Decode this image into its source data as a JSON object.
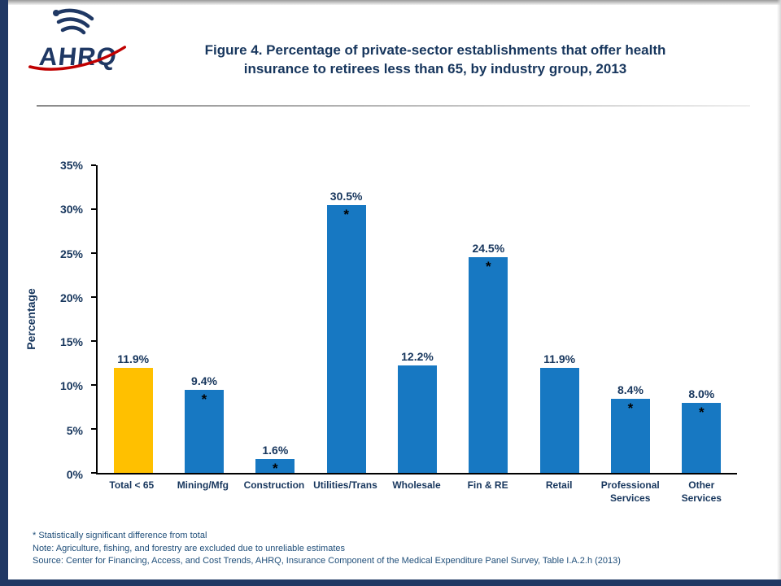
{
  "header": {
    "brand": "AHRQ",
    "title_line1": "Figure 4. Percentage of private-sector establishments  that offer health",
    "title_line2": "insurance to retirees less than 65, by industry group, 2013"
  },
  "chart_data": {
    "type": "bar",
    "title": "Figure 4. Percentage of private-sector establishments that offer health insurance to retirees less than 65, by industry group, 2013",
    "xlabel": "",
    "ylabel": "Percentage",
    "ylim": [
      0,
      35
    ],
    "ytick_step": 5,
    "ytick_suffix": "%",
    "grid": false,
    "legend_position": "none",
    "categories": [
      "Total < 65",
      "Mining/Mfg",
      "Construction",
      "Utilities/Trans",
      "Wholesale",
      "Fin & RE",
      "Retail",
      "Professional Services",
      "Other Services"
    ],
    "values": [
      11.9,
      9.4,
      1.6,
      30.5,
      12.2,
      24.5,
      11.9,
      8.4,
      8.0
    ],
    "data_labels": [
      "11.9%",
      "9.4%",
      "1.6%",
      "30.5%",
      "12.2%",
      "24.5%",
      "11.9%",
      "8.4%",
      "8.0%"
    ],
    "statistically_significant": [
      false,
      true,
      true,
      true,
      false,
      true,
      false,
      true,
      true
    ],
    "significance_marker": "*",
    "bar_color_total": "#FFC000",
    "bar_color_default": "#1778C2"
  },
  "footnotes": [
    "* Statistically significant difference from total",
    "Note: Agriculture, fishing, and forestry are excluded due to unreliable estimates",
    "Source: Center for Financing, Access, and Cost Trends, AHRQ, Insurance Component of the Medical Expenditure Panel Survey,  Table I.A.2.h  (2013)"
  ],
  "colors": {
    "text_navy": "#17365D",
    "edge_navy": "#203864",
    "footnote_blue": "#1F4E79",
    "logo_red": "#C00000"
  }
}
